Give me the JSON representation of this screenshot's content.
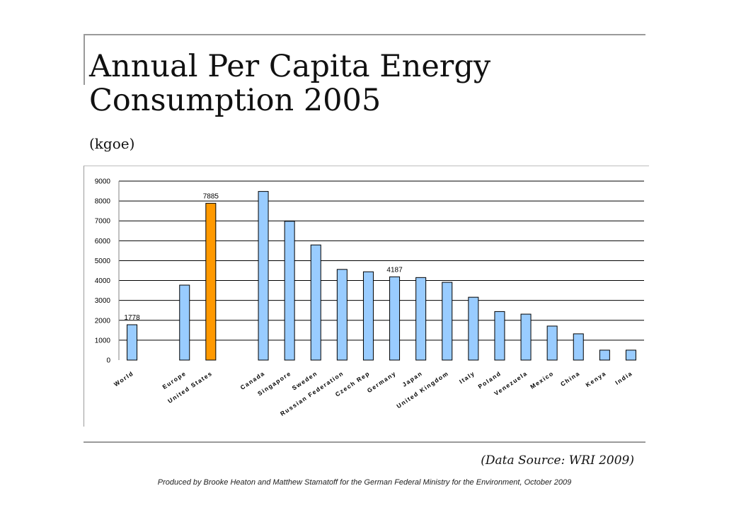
{
  "slide": {
    "title": "Annual Per Capita Energy Consumption 2005",
    "units": "(kgoe)",
    "source": "(Data Source: WRI 2009)",
    "credit": "Produced by Brooke Heaton and Matthew Stamatoff for the German Federal Ministry for the Environment, October 2009"
  },
  "colors": {
    "bar": "#99ccff",
    "highlight": "#ff9900",
    "bar_outline": "#000000",
    "grid": "#000000"
  },
  "chart_data": {
    "type": "bar",
    "title": "",
    "xlabel": "",
    "ylabel": "",
    "ylim": [
      0,
      9000
    ],
    "yticks": [
      0,
      1000,
      2000,
      3000,
      4000,
      5000,
      6000,
      7000,
      8000,
      9000
    ],
    "grid": true,
    "legend": "none",
    "categories": [
      "World",
      "",
      "Europe",
      "United States",
      "",
      "Canada",
      "Singapore",
      "Sweden",
      "Russian Federation",
      "Czech Rep",
      "Germany",
      "Japan",
      "United Kingdom",
      "Italy",
      "Poland",
      "Venezuela",
      "Mexico",
      "China",
      "Kenya",
      "India"
    ],
    "values": [
      1778,
      null,
      3770,
      7885,
      null,
      8480,
      6980,
      5790,
      4560,
      4440,
      4187,
      4150,
      3910,
      3160,
      2440,
      2310,
      1710,
      1320,
      500,
      500
    ],
    "highlight_index": 3,
    "data_labels": [
      {
        "index": 0,
        "text": "1778"
      },
      {
        "index": 3,
        "text": "7885"
      },
      {
        "index": 10,
        "text": "4187"
      }
    ]
  }
}
